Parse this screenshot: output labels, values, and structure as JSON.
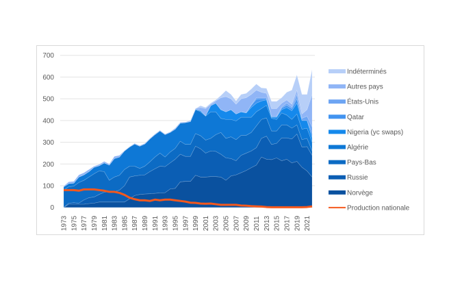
{
  "chart_data": {
    "type": "area",
    "stacked": true,
    "x": [
      1973,
      1974,
      1975,
      1976,
      1977,
      1978,
      1979,
      1980,
      1981,
      1982,
      1983,
      1984,
      1985,
      1986,
      1987,
      1988,
      1989,
      1990,
      1991,
      1992,
      1993,
      1994,
      1995,
      1996,
      1997,
      1998,
      1999,
      2000,
      2001,
      2002,
      2003,
      2004,
      2005,
      2006,
      2007,
      2008,
      2009,
      2010,
      2011,
      2012,
      2013,
      2014,
      2015,
      2016,
      2017,
      2018,
      2019,
      2020,
      2021,
      2022
    ],
    "x_tick_labels": [
      "1973",
      "1975",
      "1977",
      "1979",
      "1981",
      "1983",
      "1985",
      "1987",
      "1989",
      "1991",
      "1993",
      "1995",
      "1997",
      "1999",
      "2001",
      "2003",
      "2005",
      "2007",
      "2009",
      "2011",
      "2013",
      "2015",
      "2017",
      "2019",
      "2021"
    ],
    "ylim": [
      0,
      700
    ],
    "y_ticks": [
      "0",
      "100",
      "200",
      "300",
      "400",
      "500",
      "600",
      "700"
    ],
    "grid": true,
    "legend": "right",
    "series": [
      {
        "name": "Norvège",
        "color": "#0a519f",
        "values": [
          0,
          15,
          15,
          15,
          15,
          18,
          20,
          25,
          25,
          25,
          25,
          25,
          25,
          40,
          55,
          60,
          62,
          63,
          65,
          67,
          68,
          85,
          88,
          118,
          120,
          120,
          148,
          140,
          140,
          142,
          142,
          140,
          125,
          145,
          150,
          160,
          170,
          183,
          195,
          232,
          222,
          220,
          228,
          215,
          222,
          205,
          212,
          185,
          168,
          140
        ]
      },
      {
        "name": "Russie",
        "color": "#0b5eb4",
        "values": [
          0,
          5,
          7,
          5,
          20,
          27,
          28,
          35,
          45,
          47,
          47,
          55,
          75,
          100,
          90,
          88,
          88,
          102,
          113,
          123,
          120,
          120,
          134,
          127,
          115,
          115,
          134,
          130,
          110,
          118,
          116,
          105,
          103,
          80,
          65,
          80,
          80,
          77,
          80,
          86,
          106,
          70,
          67,
          105,
          98,
          110,
          126,
          93,
          112,
          100
        ]
      },
      {
        "name": "Pays-Bas",
        "color": "#0c6bc4",
        "values": [
          80,
          75,
          76,
          95,
          90,
          95,
          107,
          108,
          95,
          53,
          68,
          68,
          75,
          50,
          45,
          32,
          40,
          45,
          54,
          60,
          44,
          50,
          50,
          60,
          55,
          55,
          58,
          60,
          60,
          58,
          77,
          100,
          90,
          100,
          97,
          92,
          82,
          85,
          100,
          87,
          84,
          62,
          57,
          60,
          60,
          50,
          42,
          34,
          38,
          20
        ]
      },
      {
        "name": "Algérie",
        "color": "#0e78d6",
        "values": [
          15,
          15,
          14,
          25,
          25,
          25,
          30,
          24,
          40,
          70,
          85,
          84,
          85,
          88,
          102,
          102,
          102,
          105,
          103,
          102,
          103,
          90,
          88,
          83,
          100,
          105,
          110,
          110,
          110,
          122,
          105,
          65,
          87,
          80,
          86,
          83,
          83,
          70,
          65,
          50,
          58,
          58,
          53,
          55,
          45,
          40,
          50,
          48,
          47,
          40
        ]
      },
      {
        "name": "Nigeria (yc swaps)",
        "color": "#1589ec",
        "values": [
          0,
          0,
          0,
          0,
          0,
          0,
          0,
          0,
          0,
          0,
          0,
          0,
          0,
          0,
          0,
          0,
          0,
          0,
          0,
          0,
          0,
          0,
          0,
          0,
          0,
          0,
          2,
          5,
          2,
          28,
          40,
          40,
          35,
          45,
          32,
          25,
          20,
          45,
          40,
          35,
          25,
          5,
          10,
          15,
          35,
          40,
          50,
          40,
          35,
          20
        ]
      },
      {
        "name": "Qatar",
        "color": "#4294f0",
        "values": [
          0,
          0,
          0,
          0,
          0,
          0,
          0,
          0,
          0,
          0,
          0,
          0,
          0,
          0,
          0,
          0,
          0,
          0,
          0,
          0,
          0,
          0,
          0,
          0,
          0,
          0,
          0,
          0,
          0,
          0,
          0,
          0,
          0,
          0,
          0,
          0,
          1,
          10,
          18,
          10,
          5,
          3,
          3,
          8,
          10,
          10,
          20,
          0,
          0,
          20
        ]
      },
      {
        "name": "États-Unis",
        "color": "#6da5f3",
        "values": [
          0,
          0,
          0,
          0,
          0,
          0,
          0,
          0,
          0,
          0,
          0,
          0,
          0,
          0,
          0,
          0,
          0,
          0,
          0,
          0,
          0,
          0,
          0,
          0,
          0,
          0,
          0,
          0,
          0,
          0,
          0,
          0,
          0,
          0,
          0,
          0,
          0,
          2,
          7,
          5,
          5,
          2,
          2,
          4,
          10,
          7,
          20,
          10,
          20,
          30
        ]
      },
      {
        "name": "Autres pays",
        "color": "#90b5f6",
        "values": [
          3,
          8,
          8,
          10,
          10,
          10,
          5,
          6,
          7,
          5,
          10,
          8,
          2,
          2,
          3,
          3,
          3,
          3,
          3,
          3,
          3,
          3,
          5,
          4,
          3,
          5,
          3,
          15,
          33,
          7,
          10,
          55,
          70,
          50,
          45,
          60,
          69,
          48,
          35,
          25,
          20,
          35,
          35,
          18,
          15,
          13,
          20,
          20,
          30,
          150
        ]
      },
      {
        "name": "Indéterminés",
        "color": "#b7cff8",
        "values": [
          0,
          0,
          0,
          0,
          0,
          0,
          0,
          0,
          0,
          0,
          0,
          0,
          0,
          0,
          0,
          0,
          0,
          0,
          0,
          0,
          0,
          0,
          0,
          0,
          0,
          0,
          0,
          8,
          5,
          5,
          5,
          10,
          28,
          20,
          15,
          20,
          20,
          25,
          28,
          20,
          23,
          33,
          33,
          25,
          35,
          65,
          70,
          90,
          70,
          115
        ]
      }
    ],
    "line_series": {
      "name": "Production nationale",
      "color": "#f4581d",
      "values": [
        80,
        80,
        80,
        77,
        83,
        83,
        83,
        80,
        77,
        72,
        72,
        67,
        58,
        45,
        38,
        33,
        33,
        30,
        36,
        33,
        36,
        36,
        33,
        30,
        27,
        22,
        21,
        18,
        17,
        18,
        15,
        12,
        12,
        12,
        12,
        9,
        8,
        6,
        5,
        4,
        2,
        1,
        1,
        1,
        1,
        1,
        1,
        1,
        2,
        5
      ]
    },
    "legend_order": [
      "Indéterminés",
      "Autres pays",
      "États-Unis",
      "Qatar",
      "Nigeria (yc swaps)",
      "Algérie",
      "Pays-Bas",
      "Russie",
      "Norvège",
      "Production nationale"
    ]
  }
}
